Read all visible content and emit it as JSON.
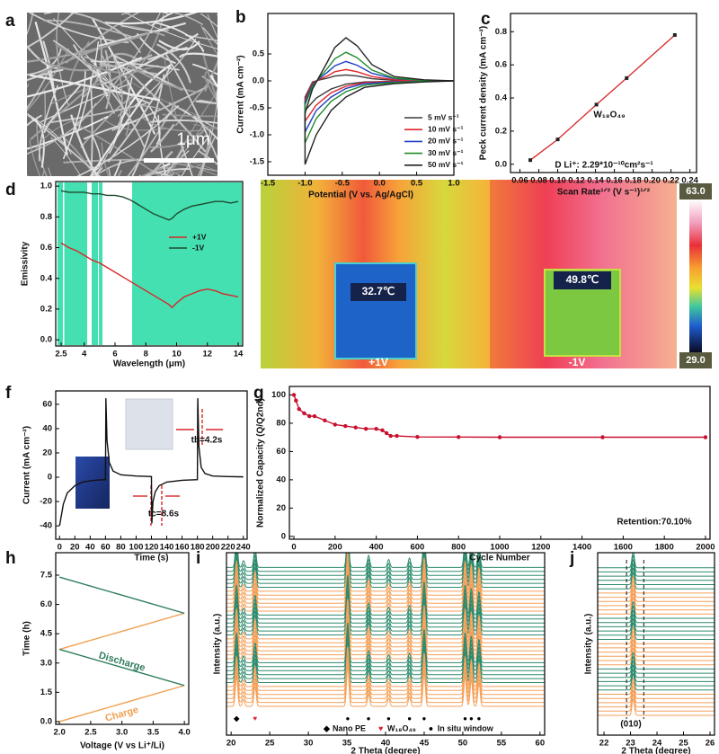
{
  "chart_data": [
    {
      "type": "image",
      "label": "a",
      "scale_bar": "1μm"
    },
    {
      "type": "line",
      "label": "b",
      "xlabel": "Potential (V vs. Ag/AgCl)",
      "ylabel": "Current (mA cm⁻²)",
      "xlim": [
        -1.5,
        1.0
      ],
      "ylim": [
        -1.75,
        1.25
      ],
      "xticks": [
        -1.5,
        {
          "value": -1.0,
          "label": "-1.0"
        },
        -0.5,
        {
          "value": 0,
          "label": "0.0"
        },
        0.5,
        {
          "value": 1.0,
          "label": "1.0"
        }
      ],
      "yticks": [
        -1.5,
        {
          "value": -1.0,
          "label": "-1.0"
        },
        -0.5,
        {
          "value": 0,
          "label": "0.0"
        },
        0.5
      ],
      "closed_loops": true,
      "x": [
        -1.0,
        -0.9,
        -0.8,
        -0.7,
        -0.6,
        -0.45,
        -0.3,
        -0.1,
        0.2,
        0.6,
        1.0,
        0.6,
        0.2,
        -0.2,
        -0.45,
        -0.65,
        -0.85,
        -1.0
      ],
      "series": [
        {
          "name": "5 mV s⁻¹",
          "color": "#3a3a3a",
          "values": [
            -0.3,
            -0.02,
            0.02,
            0.05,
            0.09,
            0.11,
            0.09,
            0.04,
            0.01,
            0,
            0,
            0,
            -0.01,
            -0.02,
            -0.06,
            -0.15,
            -0.32,
            -0.55
          ]
        },
        {
          "name": "10 mV s⁻¹",
          "color": "#e0242b",
          "values": [
            -0.35,
            -0.04,
            0.03,
            0.09,
            0.17,
            0.21,
            0.17,
            0.08,
            0.02,
            0,
            0,
            -0.01,
            -0.01,
            -0.03,
            -0.1,
            -0.22,
            -0.45,
            -0.75
          ]
        },
        {
          "name": "20 mV s⁻¹",
          "color": "#1f3fc4",
          "values": [
            -0.4,
            -0.07,
            0.05,
            0.16,
            0.28,
            0.36,
            0.29,
            0.14,
            0.04,
            0.01,
            0,
            -0.01,
            -0.02,
            -0.05,
            -0.14,
            -0.3,
            -0.55,
            -0.95
          ]
        },
        {
          "name": "30 mV s⁻¹",
          "color": "#1e8c2a",
          "values": [
            -0.45,
            -0.1,
            0.07,
            0.23,
            0.41,
            0.53,
            0.43,
            0.2,
            0.05,
            0.01,
            0,
            -0.01,
            -0.03,
            -0.08,
            -0.2,
            -0.38,
            -0.7,
            -1.15
          ]
        },
        {
          "name": "50 mV s⁻¹",
          "color": "#222222",
          "values": [
            -0.6,
            -0.15,
            0.1,
            0.35,
            0.62,
            0.8,
            0.65,
            0.3,
            0.08,
            0.02,
            0,
            -0.02,
            -0.05,
            -0.12,
            -0.3,
            -0.55,
            -1.0,
            -1.55
          ]
        }
      ]
    },
    {
      "type": "scatter",
      "label": "c",
      "xlabel": "Scan Rate¹ᐟ² (V s⁻¹)¹ᐟ²",
      "ylabel": "Peck current density (mA cm⁻²)",
      "xlim": [
        0.05,
        0.247
      ],
      "ylim": [
        -0.05,
        0.91
      ],
      "xticks": [
        0.06,
        0.08,
        {
          "value": 0.1,
          "label": "0.10"
        },
        0.12,
        0.14,
        0.16,
        0.18,
        {
          "value": 0.2,
          "label": "0.20"
        },
        0.22,
        0.24
      ],
      "yticks": [
        {
          "value": 0,
          "label": "0.0"
        },
        0.2,
        0.4,
        0.6,
        0.8
      ],
      "x": [
        0.071,
        0.1,
        0.141,
        0.173,
        0.224
      ],
      "values": [
        0.025,
        0.15,
        0.36,
        0.52,
        0.78
      ],
      "color": "#222222",
      "fit_color": "#d62728",
      "annotations": [
        "W₁₈O₄₉",
        "D Li⁺:  2.29*10⁻¹⁰cm²s⁻¹"
      ]
    },
    {
      "type": "line",
      "label": "d",
      "xlabel": "Wavelength (μm)",
      "ylabel": "Emissivity",
      "xlim": [
        2.15,
        14.29
      ],
      "ylim": [
        -0.04,
        1.03
      ],
      "xticks": [
        2.5,
        4,
        6,
        8,
        10,
        12,
        14
      ],
      "yticks": [
        {
          "value": 0,
          "label": "0.0"
        },
        0.2,
        0.4,
        0.6,
        0.8,
        {
          "value": 1.0,
          "label": "1.0"
        }
      ],
      "x": [
        2.5,
        3,
        3.5,
        4,
        4.5,
        5,
        5.5,
        6,
        6.5,
        7,
        7.5,
        8,
        8.5,
        9,
        9.5,
        9.7,
        10,
        10.5,
        11,
        11.5,
        12,
        12.5,
        13,
        13.5,
        14
      ],
      "series": [
        {
          "name": "+1V",
          "color": "#d62728",
          "values": [
            0.63,
            0.6,
            0.58,
            0.55,
            0.52,
            0.5,
            0.47,
            0.44,
            0.41,
            0.38,
            0.35,
            0.32,
            0.29,
            0.26,
            0.23,
            0.21,
            0.24,
            0.28,
            0.3,
            0.32,
            0.33,
            0.32,
            0.3,
            0.29,
            0.28
          ]
        },
        {
          "name": "-1V",
          "color": "#1f4a2e",
          "values": [
            0.97,
            0.96,
            0.96,
            0.96,
            0.95,
            0.95,
            0.94,
            0.94,
            0.93,
            0.91,
            0.88,
            0.85,
            0.82,
            0.8,
            0.78,
            0.79,
            0.82,
            0.85,
            0.87,
            0.88,
            0.89,
            0.9,
            0.9,
            0.89,
            0.9
          ]
        }
      ]
    },
    {
      "type": "image",
      "label": "e",
      "readouts": [
        "32.7℃",
        "49.8℃"
      ],
      "states": [
        "+1V",
        "-1V"
      ],
      "colorbar_labels": [
        "63.0",
        "29.0"
      ]
    },
    {
      "type": "line",
      "label": "f",
      "xlabel": "Time (s)",
      "ylabel": "Current (mA cm⁻²)",
      "xlim": [
        -5,
        245
      ],
      "ylim": [
        -51,
        71
      ],
      "xticks": [
        0,
        20,
        40,
        60,
        80,
        100,
        120,
        140,
        160,
        180,
        200,
        220,
        240
      ],
      "yticks": [
        -40,
        -20,
        0,
        20,
        40,
        60
      ],
      "x": [
        0,
        5,
        10,
        20,
        30,
        45,
        60,
        60.5,
        62,
        65,
        70,
        80,
        100,
        120,
        120.5,
        122,
        125,
        130,
        140,
        160,
        180,
        180.5,
        182,
        185,
        190,
        200,
        220,
        240
      ],
      "series": [
        {
          "color": "#111111",
          "values": [
            -40,
            -22,
            -13,
            -7,
            -4,
            -2.5,
            -2,
            65,
            30,
            12,
            5,
            2,
            1,
            0.5,
            -38,
            -20,
            -12,
            -7,
            -4,
            -2.5,
            -2,
            65,
            25,
            8,
            3,
            1,
            0.5,
            0.3
          ]
        }
      ],
      "annotations": [
        "tb=4.2s",
        "tc=8.6s"
      ]
    },
    {
      "type": "line",
      "label": "g",
      "xlabel": "Cycle Number",
      "ylabel": "Normalized Capacity (Q/Q2nd)",
      "xlim": [
        -22,
        2022
      ],
      "ylim": [
        -2,
        106
      ],
      "xticks": [
        0,
        200,
        400,
        600,
        800,
        1000,
        1200,
        1400,
        1600,
        1800,
        2000
      ],
      "yticks": [
        0,
        20,
        40,
        60,
        80,
        100
      ],
      "markers": true,
      "x": [
        0,
        10,
        25,
        50,
        75,
        100,
        150,
        200,
        250,
        300,
        350,
        400,
        430,
        450,
        470,
        500,
        600,
        800,
        1000,
        1500,
        2000
      ],
      "series": [
        {
          "color": "#c8102e",
          "values": [
            100,
            96,
            90,
            87,
            85,
            85,
            82,
            79,
            78,
            77,
            76,
            76,
            75,
            73,
            71,
            71,
            70.3,
            70.2,
            70.1,
            70.1,
            70.1
          ]
        }
      ],
      "annotations": [
        "Retention:70.10%"
      ]
    },
    {
      "type": "line",
      "label": "h",
      "xlabel": "Voltage (V vs Li⁺/Li)",
      "ylabel": "Time (h)",
      "xlim": [
        1.94,
        4.07
      ],
      "ylim": [
        -0.14,
        8.65
      ],
      "xticks": [
        {
          "value": 2,
          "label": "2.0"
        },
        2.5,
        {
          "value": 3,
          "label": "3.0"
        },
        3.5,
        {
          "value": 4,
          "label": "4.0"
        }
      ],
      "yticks": [
        {
          "value": 0,
          "label": "0.0"
        },
        1.5,
        {
          "value": 3,
          "label": "3.0"
        },
        4.5,
        {
          "value": 6,
          "label": "6.0"
        },
        7.5
      ],
      "inline_names": true,
      "series": [
        {
          "name": "Charge",
          "color": "#f0a050",
          "x": [
            2.0,
            4.0,
            null,
            2.0,
            4.0
          ],
          "values": [
            0,
            1.85,
            null,
            3.7,
            5.55
          ]
        },
        {
          "name": "Discharge",
          "color": "#2e7d5b",
          "x": [
            4.0,
            2.0,
            null,
            4.0,
            2.0
          ],
          "values": [
            1.85,
            3.7,
            null,
            5.55,
            7.4
          ]
        }
      ]
    },
    {
      "type": "waterfall",
      "label": "i",
      "xlabel": "2 Theta (degree)",
      "ylabel": "Intensity (a.u.)",
      "xlim": [
        19.4,
        60.6
      ],
      "xticks": [
        20,
        25,
        30,
        35,
        40,
        45,
        50,
        55,
        60
      ],
      "peak_positions": [
        20.7,
        21.6,
        23.1,
        35.1,
        37.8,
        40.4,
        43.1,
        45.0,
        50.3,
        51.1,
        52.1
      ],
      "peak_heights": [
        45,
        10,
        30,
        60,
        18,
        12,
        14,
        50,
        45,
        40,
        35
      ],
      "trace_colors": [
        "#f5a05a",
        "#f5a05a",
        "#f5a05a",
        "#f5a05a",
        "#f5a05a",
        "#f5a05a",
        "#2e8b6e",
        "#2e8b6e",
        "#2e8b6e",
        "#2e8b6e",
        "#2e8b6e",
        "#2e8b6e",
        "#f5a05a",
        "#f5a05a",
        "#f5a05a",
        "#f5a05a",
        "#f5a05a",
        "#f5a05a",
        "#2e8b6e",
        "#2e8b6e",
        "#2e8b6e",
        "#2e8b6e",
        "#2e8b6e",
        "#2e8b6e",
        "#f5a05a",
        "#f5a05a",
        "#f5a05a",
        "#f5a05a",
        "#f5a05a",
        "#f5a05a",
        "#2e8b6e",
        "#2e8b6e",
        "#2e8b6e",
        "#2e8b6e",
        "#2e8b6e",
        "#2e8b6e"
      ],
      "markers": [
        {
          "x": 20.7,
          "symbol": "◆",
          "color": "#000000"
        },
        {
          "x": 23.1,
          "symbol": "♥",
          "color": "#e0242b"
        },
        {
          "x": 35.1,
          "symbol": "●",
          "color": "#000000"
        },
        {
          "x": 37.8,
          "symbol": "●",
          "color": "#000000"
        },
        {
          "x": 40.4,
          "symbol": "●",
          "color": "#000000"
        },
        {
          "x": 43.1,
          "symbol": "●",
          "color": "#000000"
        },
        {
          "x": 45.0,
          "symbol": "●",
          "color": "#000000"
        },
        {
          "x": 50.3,
          "symbol": "●",
          "color": "#000000"
        },
        {
          "x": 51.1,
          "symbol": "●",
          "color": "#000000"
        },
        {
          "x": 52.1,
          "symbol": "●",
          "color": "#000000"
        }
      ],
      "legend": [
        {
          "symbol": "◆",
          "name": "Nano PE",
          "color": "#000000"
        },
        {
          "symbol": "♥",
          "name": "W₁₈O₄₉",
          "color": "#e0242b"
        },
        {
          "symbol": "●",
          "name": "In situ window",
          "color": "#000000"
        }
      ]
    },
    {
      "type": "waterfall",
      "label": "j",
      "xlabel": "2 Theta (degree)",
      "ylabel": "Intensity (a.u.)",
      "xlim": [
        21.76,
        26.17
      ],
      "xticks": [
        22,
        23,
        24,
        25,
        26
      ],
      "peak_positions": [
        23.1
      ],
      "peak_heights": [
        25
      ],
      "guides": [
        22.85,
        23.5
      ],
      "trace_colors": [
        "#f5a05a",
        "#f5a05a",
        "#f5a05a",
        "#f5a05a",
        "#f5a05a",
        "#f5a05a",
        "#2e8b6e",
        "#2e8b6e",
        "#2e8b6e",
        "#2e8b6e",
        "#2e8b6e",
        "#2e8b6e",
        "#f5a05a",
        "#f5a05a",
        "#f5a05a",
        "#f5a05a",
        "#f5a05a",
        "#f5a05a",
        "#2e8b6e",
        "#2e8b6e",
        "#2e8b6e",
        "#2e8b6e",
        "#2e8b6e",
        "#2e8b6e",
        "#f5a05a",
        "#f5a05a",
        "#f5a05a",
        "#f5a05a",
        "#f5a05a",
        "#f5a05a",
        "#2e8b6e",
        "#2e8b6e",
        "#2e8b6e",
        "#2e8b6e",
        "#2e8b6e",
        "#2e8b6e"
      ],
      "annotations": [
        "(010)"
      ]
    }
  ]
}
